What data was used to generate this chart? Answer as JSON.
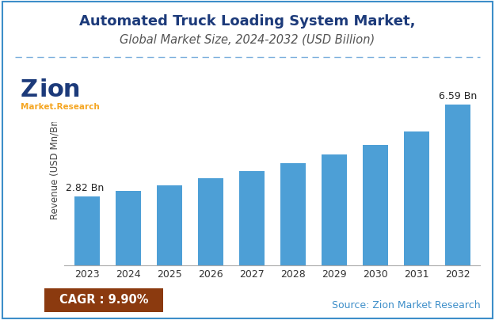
{
  "title_line1": "Automated Truck Loading System Market,",
  "title_line2": "Global Market Size, 2024-2032 (USD Billion)",
  "ylabel": "Revenue (USD Mn/Bn)",
  "years": [
    2023,
    2024,
    2025,
    2026,
    2027,
    2028,
    2029,
    2030,
    2031,
    2032
  ],
  "values": [
    2.82,
    3.05,
    3.3,
    3.58,
    3.88,
    4.21,
    4.57,
    4.96,
    5.5,
    6.59
  ],
  "bar_color": "#4D9FD6",
  "annotation_first": "2.82 Bn",
  "annotation_last": "6.59 Bn",
  "cagr_text": "CAGR : 9.90%",
  "cagr_bg_color": "#8B3A0F",
  "cagr_text_color": "#FFFFFF",
  "source_text": "Source: Zion Market Research",
  "source_text_color": "#3D8EC9",
  "background_color": "#FFFFFF",
  "title_color": "#1C3A7A",
  "subtitle_color": "#555555",
  "dashed_line_color": "#7AAEDC",
  "border_color": "#3D8EC9",
  "ylim": [
    0,
    8
  ],
  "title_fontsize": 13,
  "subtitle_fontsize": 10.5,
  "ylabel_fontsize": 8.5,
  "tick_fontsize": 9,
  "annotation_fontsize": 9
}
